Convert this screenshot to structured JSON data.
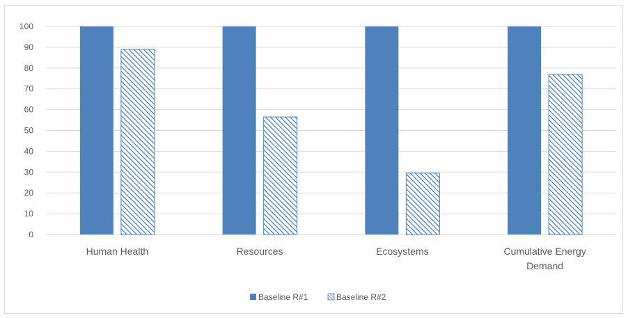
{
  "chart_data": {
    "type": "bar",
    "categories": [
      [
        "Human Health"
      ],
      [
        "Resources"
      ],
      [
        "Ecosystems"
      ],
      [
        "Cumulative Energy",
        "Demand"
      ]
    ],
    "series": [
      {
        "name": "Baseline R#1",
        "values": [
          100,
          100,
          100,
          100
        ],
        "fill": "solid",
        "color": "#4f81bd"
      },
      {
        "name": "Baseline R#2",
        "values": [
          89,
          56.5,
          29.5,
          77
        ],
        "fill": "hatched",
        "color": "#4f81bd"
      }
    ],
    "ylim": [
      0,
      100
    ],
    "yticks": [
      "0",
      "10",
      "20",
      "30",
      "40",
      "50",
      "60",
      "70",
      "80",
      "90",
      "100"
    ],
    "grid": true,
    "legend": "bottom-center",
    "title": "",
    "xlabel": "",
    "ylabel": ""
  }
}
